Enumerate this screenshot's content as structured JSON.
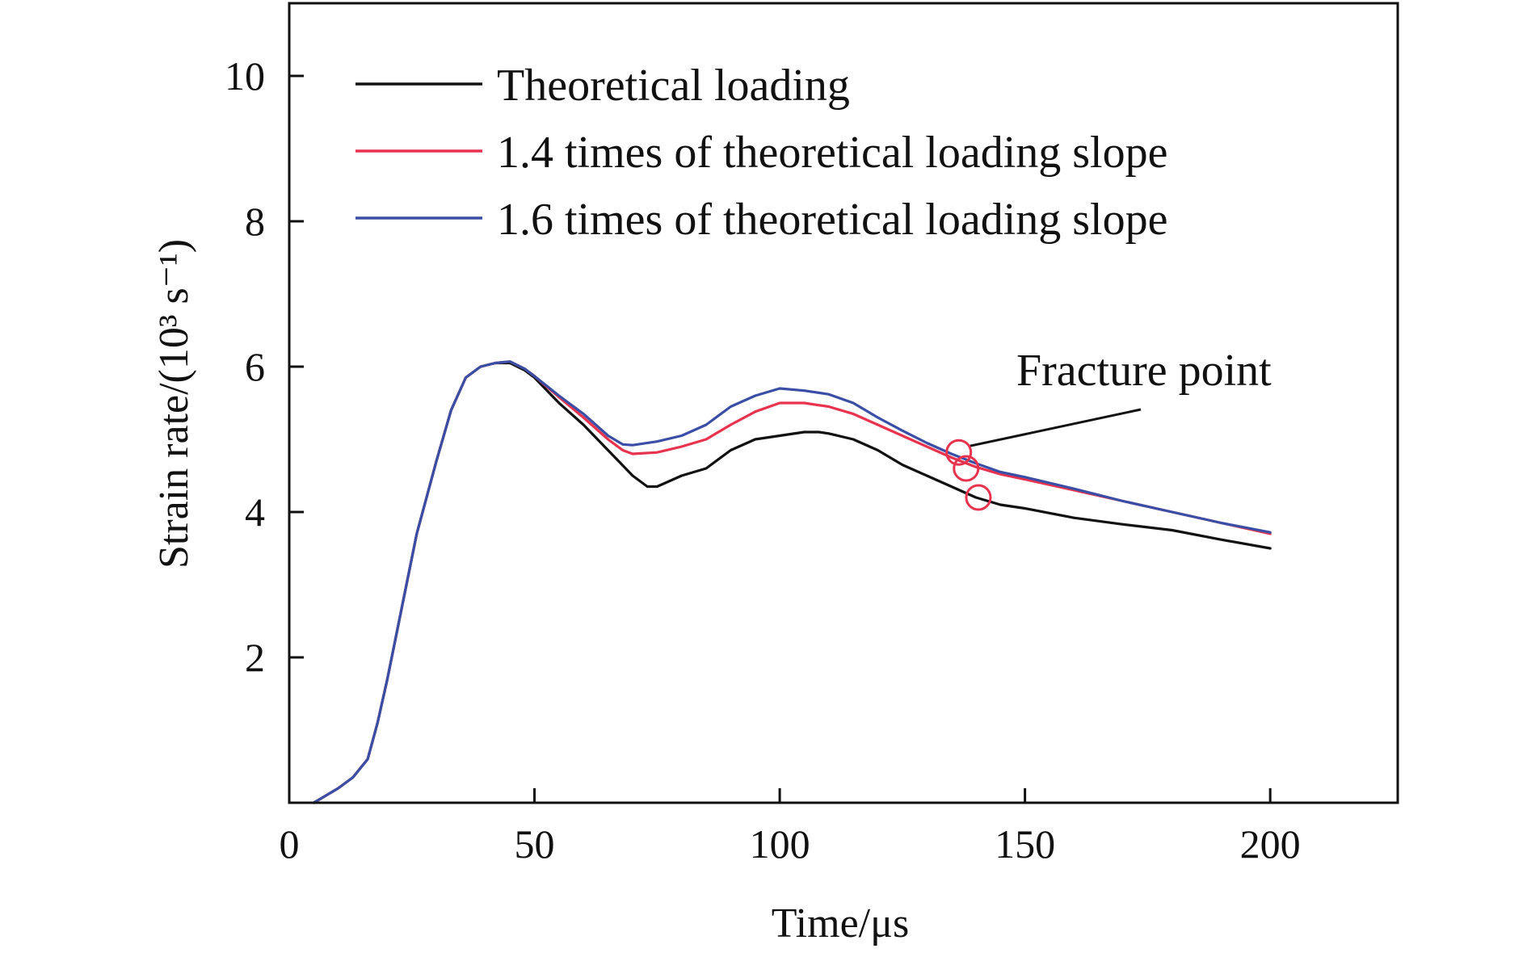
{
  "chart_data": {
    "type": "line",
    "xlabel": "Time/μs",
    "ylabel": "Strain rate/(10³ s⁻¹)",
    "xlim": [
      0,
      226
    ],
    "ylim": [
      0,
      11
    ],
    "xticks": [
      0,
      50,
      100,
      150,
      200
    ],
    "yticks": [
      2,
      4,
      6,
      8,
      10
    ],
    "x_tick_labels": [
      "0",
      "50",
      "100",
      "150",
      "200"
    ],
    "y_tick_labels": [
      "2",
      "4",
      "6",
      "8",
      "10"
    ],
    "grid": false,
    "legend_position": "top-left",
    "series": [
      {
        "name": "Theoretical loading",
        "color": "#111111",
        "x": [
          5,
          10,
          13,
          16,
          18,
          20,
          23,
          26,
          30,
          33,
          36,
          39,
          42,
          45,
          48,
          50,
          55,
          60,
          65,
          70,
          73,
          75,
          80,
          85,
          90,
          95,
          100,
          105,
          108,
          110,
          115,
          120,
          125,
          130,
          135,
          140,
          145,
          150,
          160,
          170,
          180,
          190,
          200
        ],
        "y": [
          0,
          0.2,
          0.35,
          0.6,
          1.1,
          1.7,
          2.7,
          3.7,
          4.7,
          5.4,
          5.85,
          6.0,
          6.05,
          6.05,
          5.95,
          5.85,
          5.5,
          5.2,
          4.85,
          4.5,
          4.35,
          4.35,
          4.5,
          4.6,
          4.85,
          5.0,
          5.05,
          5.1,
          5.1,
          5.08,
          5.0,
          4.85,
          4.65,
          4.5,
          4.35,
          4.2,
          4.1,
          4.05,
          3.92,
          3.83,
          3.75,
          3.62,
          3.5
        ]
      },
      {
        "name": "1.4 times of theoretical loading slope",
        "color": "#e8334f",
        "x": [
          5,
          10,
          13,
          16,
          18,
          20,
          23,
          26,
          30,
          33,
          36,
          39,
          42,
          45,
          48,
          50,
          55,
          60,
          65,
          68,
          70,
          75,
          80,
          85,
          90,
          95,
          100,
          105,
          110,
          115,
          120,
          125,
          130,
          135,
          140,
          145,
          150,
          160,
          170,
          180,
          190,
          200
        ],
        "y": [
          0,
          0.2,
          0.35,
          0.6,
          1.1,
          1.7,
          2.7,
          3.7,
          4.7,
          5.4,
          5.85,
          6.0,
          6.05,
          6.07,
          5.97,
          5.87,
          5.58,
          5.3,
          5.0,
          4.85,
          4.8,
          4.82,
          4.9,
          5.0,
          5.2,
          5.38,
          5.5,
          5.5,
          5.45,
          5.35,
          5.2,
          5.05,
          4.9,
          4.75,
          4.62,
          4.52,
          4.45,
          4.3,
          4.15,
          4.0,
          3.85,
          3.7
        ]
      },
      {
        "name": "1.6 times of theoretical loading slope",
        "color": "#3b4ea6",
        "x": [
          5,
          10,
          13,
          16,
          18,
          20,
          23,
          26,
          30,
          33,
          36,
          39,
          42,
          45,
          48,
          50,
          55,
          60,
          65,
          68,
          70,
          75,
          80,
          85,
          90,
          95,
          100,
          105,
          110,
          115,
          120,
          125,
          130,
          135,
          140,
          145,
          150,
          160,
          170,
          180,
          190,
          200
        ],
        "y": [
          0,
          0.2,
          0.35,
          0.6,
          1.1,
          1.7,
          2.7,
          3.7,
          4.7,
          5.4,
          5.85,
          6.0,
          6.05,
          6.07,
          5.97,
          5.87,
          5.6,
          5.35,
          5.05,
          4.93,
          4.92,
          4.97,
          5.05,
          5.2,
          5.45,
          5.6,
          5.7,
          5.67,
          5.62,
          5.5,
          5.3,
          5.12,
          4.95,
          4.8,
          4.67,
          4.55,
          4.48,
          4.32,
          4.15,
          4.0,
          3.85,
          3.72
        ]
      }
    ],
    "annotations": [
      {
        "text": "Fracture point",
        "points": [
          {
            "x": 136.5,
            "y": 4.82
          },
          {
            "x": 138.0,
            "y": 4.6
          },
          {
            "x": 140.5,
            "y": 4.2
          }
        ],
        "marker_color": "#e8334f"
      }
    ]
  }
}
